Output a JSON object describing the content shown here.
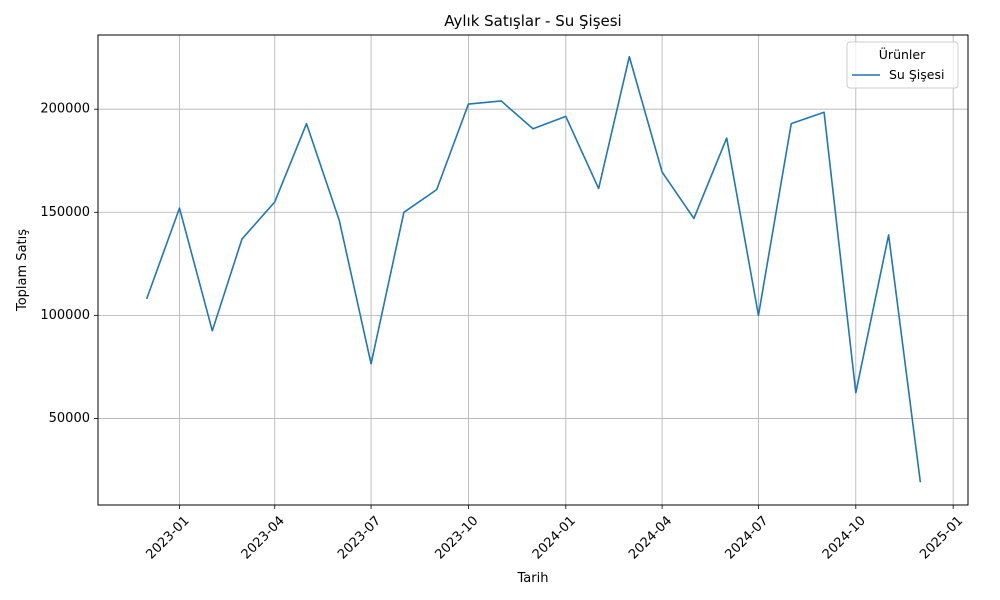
{
  "chart_data": {
    "type": "line",
    "title": "Aylık Satışlar - Su Şişesi",
    "xlabel": "Tarih",
    "ylabel": "Toplam Satış",
    "grid": true,
    "legend": {
      "title": "Ürünler",
      "placement": "top-right"
    },
    "xlim": [
      "2022-10-16",
      "2025-01-15"
    ],
    "ylim": [
      8000,
      236000
    ],
    "x_ticks": [
      "2023-01",
      "2023-04",
      "2023-07",
      "2023-10",
      "2024-01",
      "2024-04",
      "2024-07",
      "2024-10",
      "2025-01"
    ],
    "y_ticks": [
      50000,
      100000,
      150000,
      200000
    ],
    "x": [
      "2022-12-01",
      "2023-01-01",
      "2023-02-01",
      "2023-03-01",
      "2023-04-01",
      "2023-05-01",
      "2023-06-01",
      "2023-07-01",
      "2023-08-01",
      "2023-09-01",
      "2023-10-01",
      "2023-11-01",
      "2023-12-01",
      "2024-01-01",
      "2024-02-01",
      "2024-03-01",
      "2024-04-01",
      "2024-05-01",
      "2024-06-01",
      "2024-07-01",
      "2024-08-01",
      "2024-09-01",
      "2024-10-01",
      "2024-11-01",
      "2024-12-01"
    ],
    "series": [
      {
        "name": "Su Şişesi",
        "color": "#1f77b4",
        "values": [
          108000,
          152000,
          92500,
          137000,
          155000,
          193000,
          146000,
          76500,
          150000,
          161000,
          202500,
          204000,
          190500,
          196500,
          161500,
          225500,
          169500,
          147000,
          186000,
          100000,
          193000,
          198500,
          62500,
          139000,
          19000
        ]
      }
    ]
  }
}
